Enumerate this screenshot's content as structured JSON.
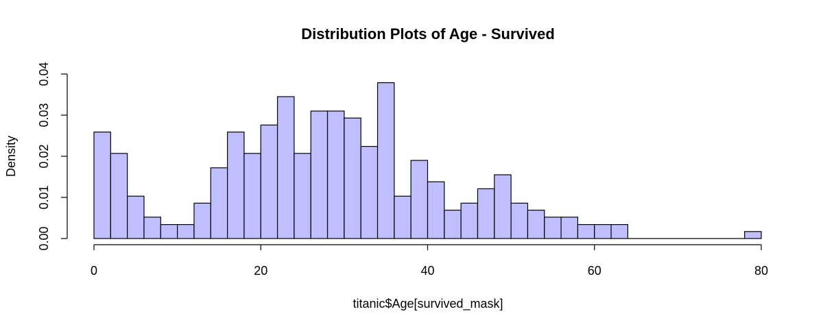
{
  "chart_data": {
    "type": "bar",
    "title": "Distribution Plots of Age - Survived",
    "xlabel": "titanic$Age[survived_mask]",
    "ylabel": "Density",
    "xlim": [
      0,
      80
    ],
    "ylim": [
      0,
      0.04
    ],
    "bin_width": 2,
    "bin_start": 0,
    "x_ticks": [
      0,
      20,
      40,
      60,
      80
    ],
    "x_tick_labels": [
      "0",
      "20",
      "40",
      "60",
      "80"
    ],
    "y_ticks": [
      0,
      0.01,
      0.02,
      0.03,
      0.04
    ],
    "y_tick_labels": [
      "0.00",
      "0.01",
      "0.02",
      "0.03",
      "0.04"
    ],
    "values": [
      0.0259,
      0.0207,
      0.0103,
      0.0052,
      0.0034,
      0.0034,
      0.0086,
      0.0172,
      0.0259,
      0.0207,
      0.0276,
      0.0345,
      0.0207,
      0.031,
      0.031,
      0.0293,
      0.0224,
      0.0379,
      0.0103,
      0.019,
      0.0138,
      0.0069,
      0.0086,
      0.0121,
      0.0155,
      0.0086,
      0.0069,
      0.0052,
      0.0052,
      0.0034,
      0.0034,
      0.0034,
      0,
      0,
      0,
      0,
      0,
      0,
      0,
      0.0017
    ],
    "bar_fill": "#bfbfff",
    "bar_stroke": "#000000",
    "grid": false,
    "legend": "none"
  }
}
